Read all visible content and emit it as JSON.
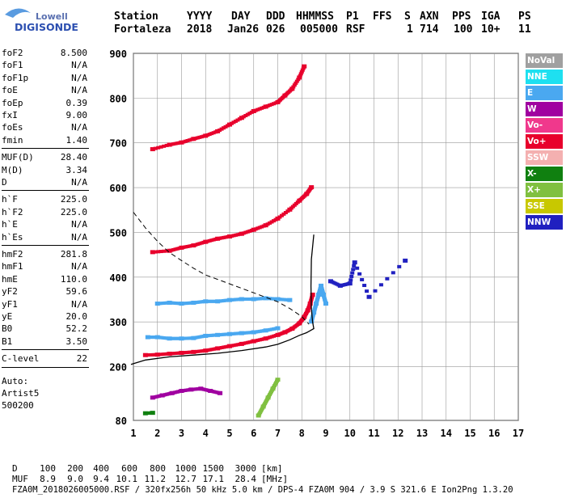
{
  "logo": {
    "line1": "Lowell",
    "line2": "DIGISONDE"
  },
  "header": {
    "labels": [
      "Station",
      "YYYY",
      "DAY",
      "DDD",
      "HHMMSS",
      "P1",
      "FFS",
      "S",
      "AXN",
      "PPS",
      "IGA",
      "PS"
    ],
    "values": [
      "Fortaleza",
      "2018",
      "Jan26",
      "026",
      "005000",
      "RSF",
      "",
      "1",
      "714",
      "100",
      "10+",
      "11"
    ]
  },
  "params": {
    "group1": [
      {
        "name": "foF2",
        "value": "8.500"
      },
      {
        "name": "foF1",
        "value": "N/A"
      },
      {
        "name": "foF1p",
        "value": "N/A"
      },
      {
        "name": "foE",
        "value": "N/A"
      },
      {
        "name": "foEp",
        "value": "0.39"
      },
      {
        "name": "fxI",
        "value": "9.00"
      },
      {
        "name": "foEs",
        "value": "N/A"
      },
      {
        "name": "fmin",
        "value": "1.40"
      }
    ],
    "group2": [
      {
        "name": "MUF(D)",
        "value": "28.40"
      },
      {
        "name": "M(D)",
        "value": "3.34"
      },
      {
        "name": "D",
        "value": "N/A"
      }
    ],
    "group3": [
      {
        "name": "h`F",
        "value": "225.0"
      },
      {
        "name": "h`F2",
        "value": "225.0"
      },
      {
        "name": "h`E",
        "value": "N/A"
      },
      {
        "name": "h`Es",
        "value": "N/A"
      }
    ],
    "group4": [
      {
        "name": "hmF2",
        "value": "281.8"
      },
      {
        "name": "hmF1",
        "value": "N/A"
      },
      {
        "name": "hmE",
        "value": "110.0"
      },
      {
        "name": "yF2",
        "value": "59.6"
      },
      {
        "name": "yF1",
        "value": "N/A"
      },
      {
        "name": "yE",
        "value": "20.0"
      },
      {
        "name": "B0",
        "value": "52.2"
      },
      {
        "name": "B1",
        "value": "3.50"
      }
    ],
    "group5": [
      {
        "name": "C-level",
        "value": "22"
      }
    ],
    "auto_label": "Auto:",
    "auto_software": "Artist5",
    "auto_code": "500200"
  },
  "legend": [
    {
      "label": "NoVal",
      "color": "#a0a0a0"
    },
    {
      "label": "NNE",
      "color": "#1ee0f0"
    },
    {
      "label": "E",
      "color": "#4aa8f0"
    },
    {
      "label": "W",
      "color": "#a000a0"
    },
    {
      "label": "Vo-",
      "color": "#f0388c"
    },
    {
      "label": "Vo+",
      "color": "#e8002c"
    },
    {
      "label": "SSW",
      "color": "#f4b0b0"
    },
    {
      "label": "X-",
      "color": "#108010"
    },
    {
      "label": "X+",
      "color": "#80c040"
    },
    {
      "label": "SSE",
      "color": "#c8c800"
    },
    {
      "label": "NNW",
      "color": "#2020c0"
    }
  ],
  "footer": {
    "row_d_label": "D",
    "distances": [
      "100",
      "200",
      "400",
      "600",
      "800",
      "1000",
      "1500",
      "3000"
    ],
    "distance_unit": "[km]",
    "row_muf_label": "MUF",
    "mufs": [
      "8.9",
      "9.0",
      "9.4",
      "10.1",
      "11.2",
      "12.7",
      "17.1",
      "28.4"
    ],
    "muf_unit": "[MHz]",
    "info": "FZA0M_2018026005000.RSF / 320fx256h 50 kHz 5.0 km / DPS-4 FZA0M 904 / 3.9 S 321.6 E   Ion2Png 1.3.20"
  },
  "chart_data": {
    "type": "scatter",
    "xlim": [
      1,
      17
    ],
    "ylim": [
      80,
      900
    ],
    "xticks": [
      1,
      2,
      3,
      4,
      5,
      6,
      7,
      8,
      9,
      10,
      11,
      12,
      13,
      14,
      15,
      16,
      17
    ],
    "yticks": [
      80,
      200,
      300,
      400,
      500,
      600,
      700,
      800,
      900
    ],
    "ytick_labels": [
      "80",
      "200",
      "300",
      "400",
      "500",
      "600",
      "700",
      "800",
      "900"
    ],
    "grid": true,
    "traces": [
      {
        "name": "F-trace-1",
        "color": "#e8002c",
        "x": [
          1.5,
          2.0,
          2.5,
          3.0,
          3.5,
          4.0,
          4.5,
          5.0,
          5.5,
          6.0,
          6.5,
          7.0,
          7.3,
          7.6,
          7.9,
          8.1,
          8.25,
          8.35,
          8.45
        ],
        "y": [
          225,
          226,
          228,
          230,
          232,
          235,
          240,
          245,
          250,
          256,
          262,
          270,
          276,
          284,
          296,
          310,
          325,
          340,
          360
        ]
      },
      {
        "name": "F-trace-2",
        "color": "#e8002c",
        "x": [
          1.8,
          2.5,
          3.0,
          3.5,
          4.0,
          4.5,
          5.0,
          5.5,
          6.0,
          6.5,
          7.0,
          7.5,
          7.9,
          8.2,
          8.4
        ],
        "y": [
          455,
          458,
          465,
          470,
          478,
          485,
          490,
          496,
          505,
          515,
          530,
          550,
          570,
          585,
          600
        ]
      },
      {
        "name": "F-trace-3",
        "color": "#e8002c",
        "x": [
          1.8,
          2.5,
          3.0,
          3.5,
          4.0,
          4.5,
          5.0,
          5.5,
          6.0,
          6.5,
          7.0,
          7.3,
          7.6,
          7.9,
          8.1
        ],
        "y": [
          685,
          695,
          700,
          708,
          715,
          725,
          740,
          755,
          770,
          780,
          790,
          805,
          820,
          845,
          870
        ]
      },
      {
        "name": "E-scatter",
        "color": "#4aa8f0",
        "x": [
          1.6,
          2.0,
          2.5,
          3.0,
          3.5,
          4.0,
          4.5,
          5.0,
          5.5,
          6.0,
          6.5,
          7.0
        ],
        "y": [
          265,
          265,
          262,
          262,
          263,
          268,
          270,
          272,
          274,
          276,
          280,
          285
        ]
      },
      {
        "name": "E-scatter-2",
        "color": "#4aa8f0",
        "x": [
          2.0,
          2.5,
          3.0,
          3.5,
          4.0,
          4.5,
          5.0,
          5.5,
          6.0,
          6.5,
          7.0,
          7.5
        ],
        "y": [
          340,
          342,
          340,
          342,
          345,
          345,
          348,
          350,
          350,
          352,
          350,
          348
        ]
      },
      {
        "name": "vertical-spread",
        "color": "#4aa8f0",
        "x": [
          8.4,
          8.5,
          8.6,
          8.7,
          8.8,
          8.9,
          9.0
        ],
        "y": [
          300,
          320,
          340,
          360,
          380,
          360,
          340
        ]
      },
      {
        "name": "low-W",
        "color": "#a000a0",
        "x": [
          1.8,
          2.2,
          2.6,
          3.0,
          3.4,
          3.8,
          4.2,
          4.6
        ],
        "y": [
          130,
          135,
          140,
          145,
          148,
          150,
          145,
          140
        ]
      },
      {
        "name": "low-X",
        "color": "#108010",
        "x": [
          1.5,
          1.8
        ],
        "y": [
          95,
          96
        ]
      },
      {
        "name": "NNW-points",
        "color": "#2020c0",
        "x": [
          9.2,
          9.6,
          10.0,
          10.2,
          10.8,
          12.3
        ],
        "y": [
          390,
          380,
          385,
          432,
          355,
          436
        ]
      },
      {
        "name": "oblique-low",
        "color": "#80c040",
        "x": [
          6.2,
          6.4,
          6.6,
          6.8,
          7.0
        ],
        "y": [
          90,
          110,
          130,
          150,
          170
        ]
      }
    ],
    "profile_solid": {
      "x": [
        0.9,
        1.5,
        2.5,
        3.5,
        4.5,
        5.5,
        6.5,
        7.0,
        7.5,
        7.9,
        8.2,
        8.4,
        8.5,
        8.45,
        8.4,
        8.38,
        8.4,
        8.5
      ],
      "y": [
        205,
        215,
        222,
        226,
        230,
        236,
        244,
        250,
        260,
        270,
        276,
        282,
        285,
        300,
        330,
        380,
        440,
        495
      ]
    },
    "profile_dashed": {
      "x": [
        1.0,
        1.5,
        2.0,
        2.5,
        3.0,
        3.5,
        4.0,
        5.0,
        6.0,
        7.0,
        7.5,
        8.0,
        8.3
      ],
      "y": [
        545,
        510,
        480,
        455,
        437,
        420,
        405,
        385,
        365,
        345,
        330,
        312,
        295
      ]
    }
  }
}
